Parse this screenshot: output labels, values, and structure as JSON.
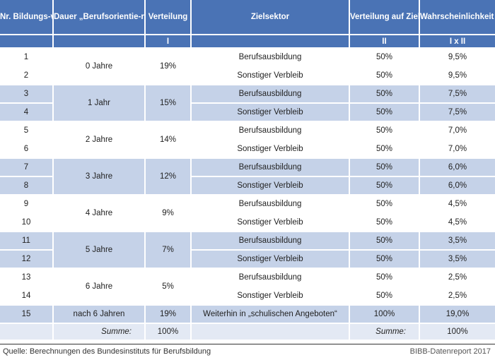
{
  "headers": {
    "nr": "Nr. Bildungs-verlauf",
    "dauer": "Dauer „Berufsorientie-rung und Ausbildungs-vorbereitung“",
    "verteilung": "Verteilung",
    "zielsektor": "Zielsektor",
    "verteilung_ziel": "Verteilung auf Ziel-sektor",
    "wahrscheinlichkeit": "Wahrscheinlichkeit für Zielsektor (ohne Integrationskurs)"
  },
  "subheaders": {
    "verteilung": "I",
    "verteilung_ziel": "II",
    "wahrscheinlichkeit": "I x II"
  },
  "rows": [
    {
      "nr": "1",
      "dauer": "0 Jahre",
      "verteilung": "19%",
      "ziel": "Berufsausbildung",
      "vz": "50%",
      "w": "9,5%"
    },
    {
      "nr": "2",
      "ziel": "Sonstiger Verbleib",
      "vz": "50%",
      "w": "9,5%"
    },
    {
      "nr": "3",
      "dauer": "1 Jahr",
      "verteilung": "15%",
      "ziel": "Berufsausbildung",
      "vz": "50%",
      "w": "7,5%"
    },
    {
      "nr": "4",
      "ziel": "Sonstiger Verbleib",
      "vz": "50%",
      "w": "7,5%"
    },
    {
      "nr": "5",
      "dauer": "2 Jahre",
      "verteilung": "14%",
      "ziel": "Berufsausbildung",
      "vz": "50%",
      "w": "7,0%"
    },
    {
      "nr": "6",
      "ziel": "Sonstiger Verbleib",
      "vz": "50%",
      "w": "7,0%"
    },
    {
      "nr": "7",
      "dauer": "3 Jahre",
      "verteilung": "12%",
      "ziel": "Berufsausbildung",
      "vz": "50%",
      "w": "6,0%"
    },
    {
      "nr": "8",
      "ziel": "Sonstiger Verbleib",
      "vz": "50%",
      "w": "6,0%"
    },
    {
      "nr": "9",
      "dauer": "4 Jahre",
      "verteilung": "9%",
      "ziel": "Berufsausbildung",
      "vz": "50%",
      "w": "4,5%"
    },
    {
      "nr": "10",
      "ziel": "Sonstiger Verbleib",
      "vz": "50%",
      "w": "4,5%"
    },
    {
      "nr": "11",
      "dauer": "5 Jahre",
      "verteilung": "7%",
      "ziel": "Berufsausbildung",
      "vz": "50%",
      "w": "3,5%"
    },
    {
      "nr": "12",
      "ziel": "Sonstiger Verbleib",
      "vz": "50%",
      "w": "3,5%"
    },
    {
      "nr": "13",
      "dauer": "6 Jahre",
      "verteilung": "5%",
      "ziel": "Berufsausbildung",
      "vz": "50%",
      "w": "2,5%"
    },
    {
      "nr": "14",
      "ziel": "Sonstiger Verbleib",
      "vz": "50%",
      "w": "2,5%"
    },
    {
      "nr": "15",
      "dauer": "nach 6 Jahren",
      "verteilung": "19%",
      "ziel": "Weiterhin in „schulischen Angeboten“",
      "vz": "100%",
      "w": "19,0%"
    }
  ],
  "sum": {
    "label1": "Summe:",
    "verteilung": "100%",
    "label2": "Summe:",
    "w": "100%"
  },
  "footer": {
    "source": "Quelle: Berechnungen des Bundesinstituts für Berufsbildung",
    "credit": "BIBB-Datenreport 2017"
  },
  "colors": {
    "header": "#4a73b5",
    "band": "#c5d2e8",
    "sum_row": "#e3e9f4"
  }
}
